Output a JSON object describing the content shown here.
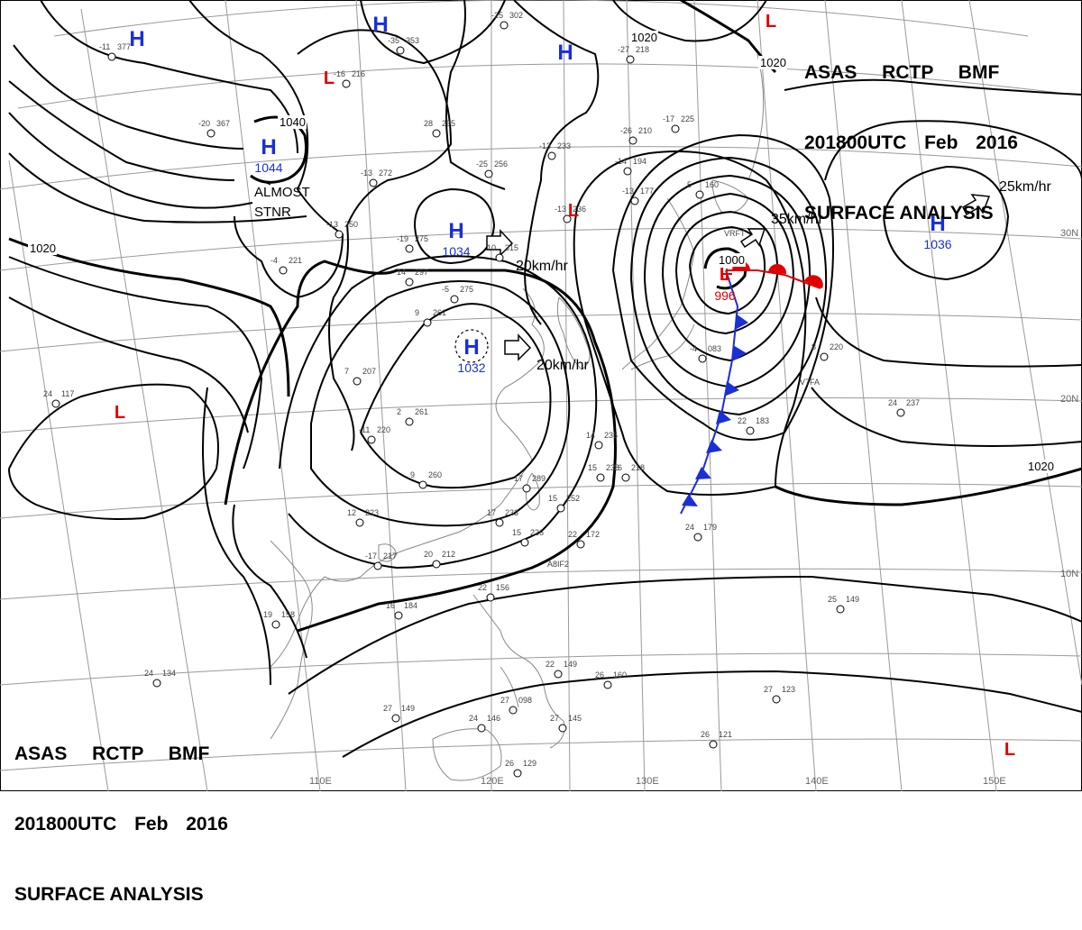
{
  "header": {
    "line1": "ASAS RCTP BMF",
    "line2": "201800UTC Feb 2016",
    "line3": "SURFACE ANALYSIS"
  },
  "colors": {
    "isobar": "#000000",
    "grid": "#9a9a9a",
    "high": "#1a2fd6",
    "low": "#e00000",
    "warm_front": "#e00000",
    "cold_front": "#1a2fd6",
    "coast": "#888888"
  },
  "isobar_labels": [
    "1020",
    "1020",
    "1020",
    "1020",
    "1040",
    "1000"
  ],
  "pressure_centers": [
    {
      "type": "H",
      "value": ""
    },
    {
      "type": "H",
      "value": ""
    },
    {
      "type": "L",
      "value": ""
    },
    {
      "type": "H",
      "value": "1044"
    },
    {
      "type": "H",
      "value": ""
    },
    {
      "type": "H",
      "value": "1034"
    },
    {
      "type": "H",
      "value": "1032"
    },
    {
      "type": "L",
      "value": ""
    },
    {
      "type": "L",
      "value": "996"
    },
    {
      "type": "H",
      "value": "1036"
    },
    {
      "type": "L",
      "value": ""
    },
    {
      "type": "L",
      "value": ""
    },
    {
      "type": "L",
      "value": ""
    }
  ],
  "motion_labels": [
    "20km/hr",
    "20km/hr",
    "35km/hr",
    "25km/hr"
  ],
  "annotations": [
    "ALMOST",
    "STNR"
  ],
  "latitude_labels": [
    "30N",
    "20N",
    "10N"
  ],
  "longitude_labels": [
    "110E",
    "120E",
    "130E",
    "140E",
    "150E"
  ],
  "station_plots": [
    {
      "t": "-11",
      "p": "377"
    },
    {
      "t": "-20",
      "p": "367"
    },
    {
      "t": "-35",
      "p": "353"
    },
    {
      "t": "-25",
      "p": "302"
    },
    {
      "t": "-16",
      "p": "216"
    },
    {
      "t": "28",
      "p": "295"
    },
    {
      "t": "-13",
      "p": "272"
    },
    {
      "t": "-25",
      "p": "256"
    },
    {
      "t": "-13",
      "p": "250"
    },
    {
      "t": "-19",
      "p": "275"
    },
    {
      "t": "-4",
      "p": "221"
    },
    {
      "t": "14",
      "p": "297"
    },
    {
      "t": "-5",
      "p": "275"
    },
    {
      "t": "9",
      "p": "261"
    },
    {
      "t": "10",
      "p": "315"
    },
    {
      "t": "7",
      "p": "207"
    },
    {
      "t": "2",
      "p": "261"
    },
    {
      "t": "-11",
      "p": "220"
    },
    {
      "t": "9",
      "p": "260"
    },
    {
      "t": "12",
      "p": "223"
    },
    {
      "t": "-17",
      "p": "217"
    },
    {
      "t": "16",
      "p": "184"
    },
    {
      "t": "19",
      "p": "158"
    },
    {
      "t": "24",
      "p": "117"
    },
    {
      "t": "-13",
      "p": "233"
    },
    {
      "t": "-14",
      "p": "194"
    },
    {
      "t": "-26",
      "p": "210"
    },
    {
      "t": "-17",
      "p": "225"
    },
    {
      "t": "-13",
      "p": "177"
    },
    {
      "t": "-13",
      "p": "236"
    },
    {
      "t": "-27",
      "p": "218"
    },
    {
      "t": "5",
      "p": "160"
    },
    {
      "t": "14",
      "p": "236"
    },
    {
      "t": "15",
      "p": "238"
    },
    {
      "t": "16",
      "p": "218"
    },
    {
      "t": "17",
      "p": "289"
    },
    {
      "t": "15",
      "p": "252"
    },
    {
      "t": "17",
      "p": "233"
    },
    {
      "t": "15",
      "p": "226"
    },
    {
      "t": "22",
      "p": "172"
    },
    {
      "t": "20",
      "p": "212"
    },
    {
      "t": "22",
      "p": "183"
    },
    {
      "t": "24",
      "p": "179"
    },
    {
      "t": "24",
      "p": "237"
    },
    {
      "t": "25",
      "p": "149"
    },
    {
      "t": "27",
      "p": "123"
    },
    {
      "t": "27",
      "p": "149"
    },
    {
      "t": "26",
      "p": "121"
    },
    {
      "t": "26",
      "p": "129"
    },
    {
      "t": "26",
      "p": "160"
    },
    {
      "t": "24",
      "p": "134"
    },
    {
      "t": "22",
      "p": "156"
    },
    {
      "t": "24",
      "p": "146"
    },
    {
      "t": "27",
      "p": "098"
    },
    {
      "t": "27",
      "p": "145"
    },
    {
      "t": "-4",
      "p": "083"
    },
    {
      "t": "8",
      "p": "220"
    },
    {
      "t": "22",
      "p": "149"
    }
  ],
  "station_ids": [
    "A8IF2",
    "V7FA",
    "VRFT"
  ]
}
